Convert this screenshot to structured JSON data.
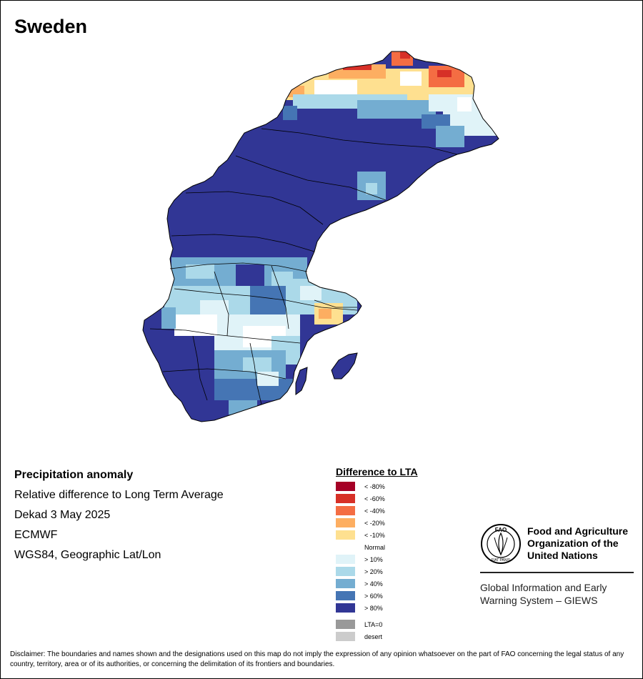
{
  "title": "Sweden",
  "info": {
    "heading": "Precipitation anomaly",
    "lines": [
      "Relative difference to Long Term Average",
      "Dekad 3 May 2025",
      "ECMWF",
      "WGS84, Geographic Lat/Lon"
    ]
  },
  "legend": {
    "title": "Difference to LTA",
    "items": [
      {
        "label": "< -80%",
        "color": "#a50026"
      },
      {
        "label": "< -60%",
        "color": "#d73027"
      },
      {
        "label": "< -40%",
        "color": "#f46d43"
      },
      {
        "label": "< -20%",
        "color": "#fdae61"
      },
      {
        "label": "< -10%",
        "color": "#fee090"
      },
      {
        "label": "Normal",
        "color": "#ffffff"
      },
      {
        "label": "> 10%",
        "color": "#e0f3f8"
      },
      {
        "label": "> 20%",
        "color": "#abd9e9"
      },
      {
        "label": "> 40%",
        "color": "#74add1"
      },
      {
        "label": "> 60%",
        "color": "#4575b4"
      },
      {
        "label": "> 80%",
        "color": "#313695"
      }
    ],
    "extra": [
      {
        "label": "LTA=0",
        "color": "#999999"
      },
      {
        "label": "desert",
        "color": "#cccccc"
      }
    ]
  },
  "org": {
    "name_lines": [
      "Food and Agriculture",
      "Organization of the",
      "United Nations"
    ],
    "logo_text": "FAO",
    "logo_motto": "FIAT PANIS",
    "program_lines": [
      "Global Information and Early",
      "Warning System – GIEWS"
    ]
  },
  "disclaimer": "Disclaimer: The boundaries and names shown and the designations used on this map do not imply the expression of any opinion whatsoever on the part of FAO concerning the legal status of any country, territory, area or of its authorities, or concerning the delimitation of its frontiers and boundaries."
}
